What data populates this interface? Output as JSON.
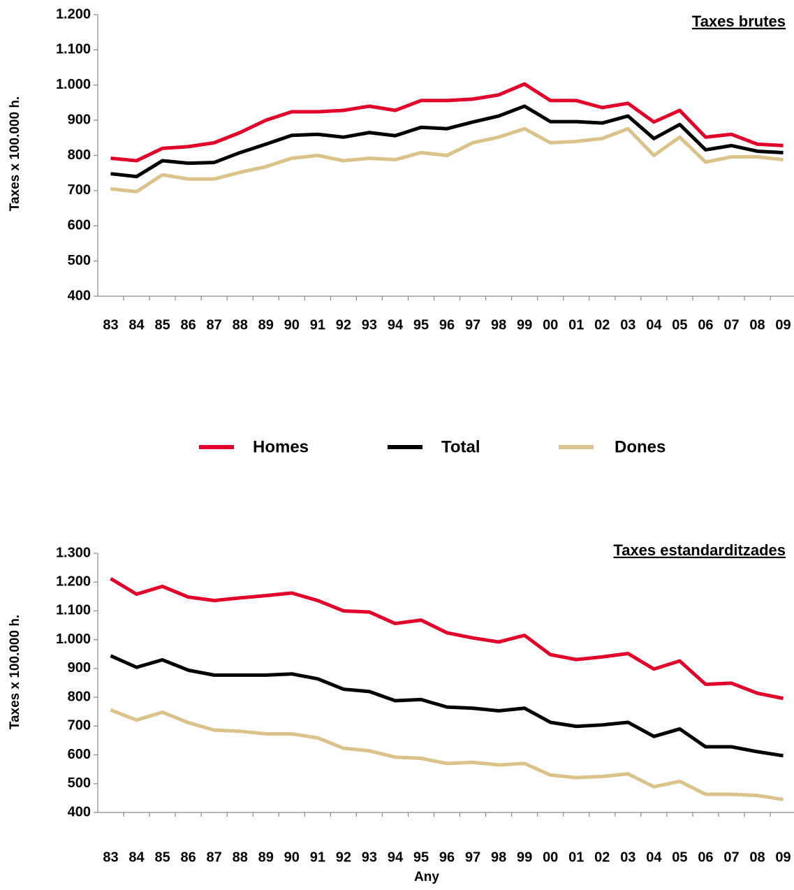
{
  "chart_data": [
    {
      "type": "line",
      "title": "Taxes brutes",
      "y_label": "Taxes x 100.000 h.",
      "categories": [
        "83",
        "84",
        "85",
        "86",
        "87",
        "88",
        "89",
        "90",
        "91",
        "92",
        "93",
        "94",
        "95",
        "96",
        "97",
        "98",
        "99",
        "00",
        "01",
        "02",
        "03",
        "04",
        "05",
        "06",
        "07",
        "08",
        "09"
      ],
      "series": [
        {
          "name": "Homes",
          "color": "#e0002a",
          "values": [
            792,
            785,
            820,
            825,
            836,
            865,
            900,
            924,
            924,
            928,
            940,
            928,
            956,
            956,
            960,
            972,
            1003,
            956,
            956,
            936,
            948,
            895,
            928,
            852,
            860,
            832,
            828
          ]
        },
        {
          "name": "Total",
          "color": "#000000",
          "values": [
            748,
            740,
            785,
            778,
            780,
            808,
            832,
            857,
            860,
            852,
            865,
            856,
            880,
            876,
            895,
            912,
            940,
            896,
            896,
            892,
            912,
            848,
            888,
            816,
            828,
            812,
            808
          ]
        },
        {
          "name": "Dones",
          "color": "#d9c38a",
          "values": [
            705,
            697,
            745,
            733,
            733,
            752,
            768,
            792,
            800,
            785,
            792,
            788,
            808,
            800,
            836,
            852,
            876,
            836,
            840,
            848,
            876,
            800,
            852,
            781,
            796,
            796,
            788
          ]
        }
      ],
      "ylim": [
        400,
        1200
      ],
      "yticks": [
        400,
        500,
        600,
        700,
        800,
        900,
        {
          "value": 1000,
          "label": "1.000"
        },
        {
          "value": 1100,
          "label": "1.100"
        },
        {
          "value": 1200,
          "label": "1.200"
        }
      ],
      "grid": false,
      "legend": "between"
    },
    {
      "type": "line",
      "title": "Taxes estandarditzades",
      "y_label": "Taxes x 100.000 h.",
      "x_label": "Any",
      "categories": [
        "83",
        "84",
        "85",
        "86",
        "87",
        "88",
        "89",
        "90",
        "91",
        "92",
        "93",
        "94",
        "95",
        "96",
        "97",
        "98",
        "99",
        "00",
        "01",
        "02",
        "03",
        "04",
        "05",
        "06",
        "07",
        "08",
        "09"
      ],
      "series": [
        {
          "name": "Homes",
          "color": "#e0002a",
          "values": [
            1212,
            1158,
            1185,
            1148,
            1136,
            1145,
            1153,
            1162,
            1136,
            1100,
            1096,
            1056,
            1068,
            1024,
            1006,
            992,
            1015,
            948,
            931,
            940,
            952,
            898,
            926,
            845,
            849,
            814,
            796
          ]
        },
        {
          "name": "Total",
          "color": "#000000",
          "values": [
            944,
            904,
            930,
            894,
            877,
            877,
            877,
            881,
            864,
            828,
            820,
            788,
            792,
            766,
            762,
            753,
            762,
            713,
            699,
            704,
            713,
            664,
            690,
            628,
            628,
            611,
            597
          ]
        },
        {
          "name": "Dones",
          "color": "#d9c38a",
          "values": [
            756,
            721,
            748,
            712,
            686,
            682,
            673,
            673,
            659,
            623,
            614,
            592,
            588,
            570,
            574,
            565,
            570,
            530,
            521,
            525,
            534,
            489,
            508,
            463,
            463,
            459,
            445
          ]
        }
      ],
      "ylim": [
        400,
        1300
      ],
      "yticks": [
        400,
        500,
        600,
        700,
        800,
        900,
        {
          "value": 1000,
          "label": "1.000"
        },
        {
          "value": 1100,
          "label": "1.100"
        },
        {
          "value": 1200,
          "label": "1.200"
        },
        {
          "value": 1300,
          "label": "1.300"
        }
      ],
      "grid": false
    }
  ]
}
